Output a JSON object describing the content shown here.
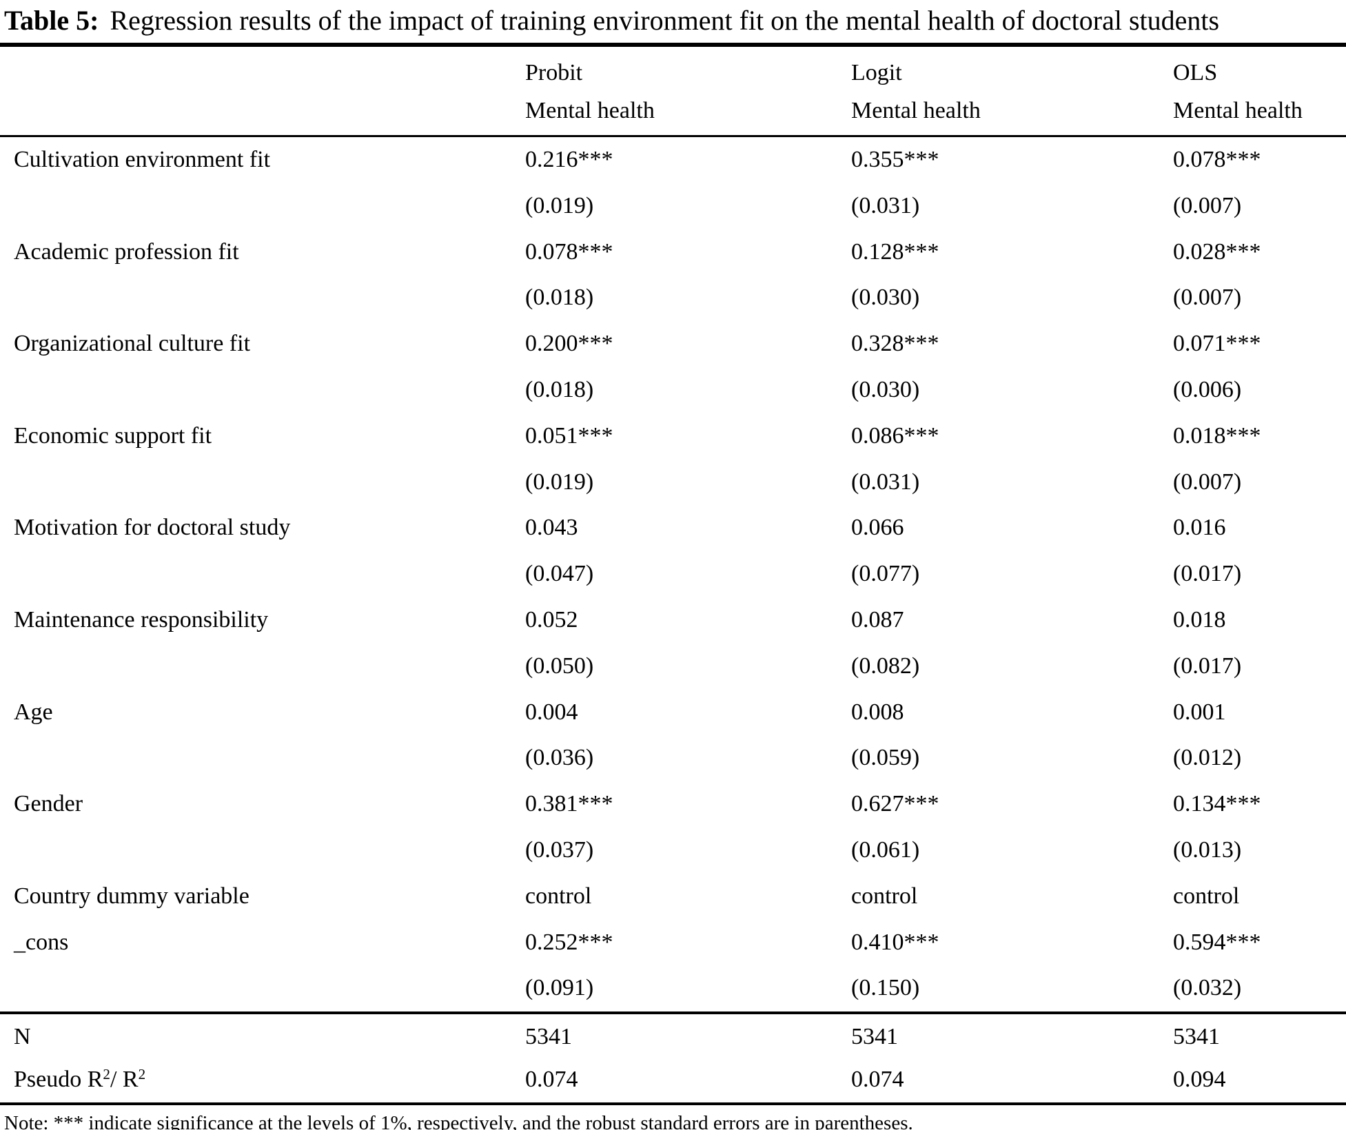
{
  "title": {
    "label": "Table 5:",
    "text": "Regression results of the impact of training environment fit on the mental health of doctoral students"
  },
  "header": {
    "columns": [
      {
        "model": "Probit",
        "dv": "Mental health"
      },
      {
        "model": "Logit",
        "dv": "Mental health"
      },
      {
        "model": "OLS",
        "dv": "Mental health"
      }
    ]
  },
  "body": {
    "rows": [
      {
        "label": "Cultivation environment fit",
        "probit": "0.216***",
        "logit": "0.355***",
        "ols": "0.078***"
      },
      {
        "label": "",
        "probit": "(0.019)",
        "logit": "(0.031)",
        "ols": "(0.007)"
      },
      {
        "label": "Academic profession fit",
        "probit": "0.078***",
        "logit": "0.128***",
        "ols": "0.028***"
      },
      {
        "label": "",
        "probit": "(0.018)",
        "logit": "(0.030)",
        "ols": "(0.007)"
      },
      {
        "label": "Organizational culture fit",
        "probit": "0.200***",
        "logit": "0.328***",
        "ols": "0.071***"
      },
      {
        "label": "",
        "probit": "(0.018)",
        "logit": "(0.030)",
        "ols": "(0.006)"
      },
      {
        "label": "Economic support fit",
        "probit": "0.051***",
        "logit": "0.086***",
        "ols": "0.018***"
      },
      {
        "label": "",
        "probit": "(0.019)",
        "logit": "(0.031)",
        "ols": "(0.007)"
      },
      {
        "label": "Motivation for doctoral study",
        "probit": "0.043",
        "logit": "0.066",
        "ols": "0.016"
      },
      {
        "label": "",
        "probit": "(0.047)",
        "logit": "(0.077)",
        "ols": "(0.017)"
      },
      {
        "label": "Maintenance responsibility",
        "probit": "0.052",
        "logit": "0.087",
        "ols": "0.018"
      },
      {
        "label": "",
        "probit": "(0.050)",
        "logit": "(0.082)",
        "ols": "(0.017)"
      },
      {
        "label": "Age",
        "probit": "0.004",
        "logit": "0.008",
        "ols": "0.001"
      },
      {
        "label": "",
        "probit": "(0.036)",
        "logit": "(0.059)",
        "ols": "(0.012)"
      },
      {
        "label": "Gender",
        "probit": "0.381***",
        "logit": "0.627***",
        "ols": "0.134***"
      },
      {
        "label": "",
        "probit": "(0.037)",
        "logit": "(0.061)",
        "ols": "(0.013)"
      },
      {
        "label": "Country dummy variable",
        "probit": "control",
        "logit": "control",
        "ols": "control"
      },
      {
        "label": "_cons",
        "probit": "0.252***",
        "logit": "0.410***",
        "ols": "0.594***"
      },
      {
        "label": "",
        "probit": "(0.091)",
        "logit": "(0.150)",
        "ols": "(0.032)"
      }
    ]
  },
  "footer": {
    "n_row": {
      "label": "N",
      "probit": "5341",
      "logit": "5341",
      "ols": "5341"
    },
    "pseudo_row": {
      "label_p1": "Pseudo R",
      "label_sup1": "2",
      "label_p2": "/ R",
      "label_sup2": "2",
      "probit": "0.074",
      "logit": "0.074",
      "ols": "0.094"
    }
  },
  "note": "Note: *** indicate significance at the levels of 1%, respectively, and the robust standard errors are in parentheses."
}
